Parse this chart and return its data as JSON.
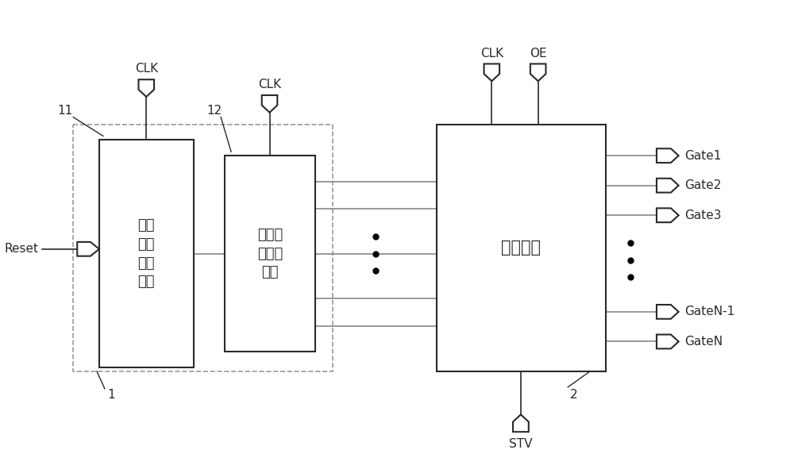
{
  "bg_color": "#ffffff",
  "line_color": "#2a2a2a",
  "box_edge": "#2a2a2a",
  "dashed_color": "#999999",
  "gray_line": "#888888",
  "block1_label": "复位\n信号\n维持\n模块",
  "block2_label": "复位信\n号输出\n模块",
  "block3_label": "驱动模块",
  "label_11": "11",
  "label_12": "12",
  "label_1": "1",
  "label_2": "2",
  "clk1_label": "CLK",
  "clk2_label": "CLK",
  "clk3_label": "CLK",
  "oe_label": "OE",
  "reset_label": "Reset",
  "stv_label": "STV",
  "gate_labels": [
    "Gate1",
    "Gate2",
    "Gate3",
    "GateN-1",
    "GateN"
  ],
  "fig_width": 10.0,
  "fig_height": 5.91
}
